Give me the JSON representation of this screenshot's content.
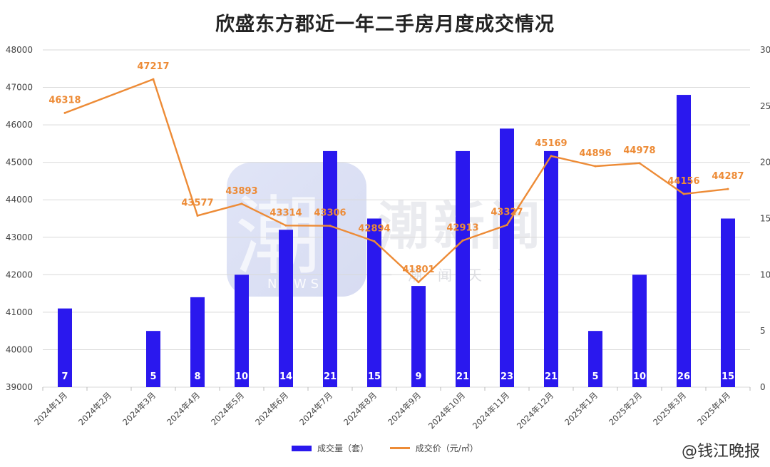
{
  "title": "欣盛东方郡近一年二手房月度成交情况",
  "watermark": {
    "glyph": "潮",
    "news": "NEWS",
    "brand": "潮新闻",
    "sub": "一潮闻天下"
  },
  "weibo": "@钱江晚报",
  "colors": {
    "bar": "#2a18ee",
    "line": "#ed8b36",
    "grid": "#d9d9d9"
  },
  "chart_data": {
    "type": "bar+line",
    "categories": [
      "2024年1月",
      "2024年2月",
      "2024年3月",
      "2024年4月",
      "2024年5月",
      "2024年6月",
      "2024年7月",
      "2024年8月",
      "2024年9月",
      "2024年10月",
      "2024年11月",
      "2024年12月",
      "2025年1月",
      "2025年2月",
      "2025年3月",
      "2025年4月"
    ],
    "series": [
      {
        "name": "成交量（套）",
        "type": "bar",
        "axis": "right",
        "values": [
          7,
          null,
          5,
          8,
          10,
          14,
          21,
          15,
          9,
          21,
          23,
          21,
          5,
          10,
          26,
          15
        ]
      },
      {
        "name": "成交价（元/㎡）",
        "type": "line",
        "axis": "left",
        "values": [
          46318,
          null,
          47217,
          43577,
          43893,
          43314,
          43306,
          42894,
          41801,
          42913,
          43327,
          45169,
          44896,
          44978,
          44156,
          44287
        ]
      }
    ],
    "y_left": {
      "min": 39000,
      "max": 48000,
      "ticks": [
        "39000",
        "40000",
        "41000",
        "42000",
        "43000",
        "44000",
        "45000",
        "46000",
        "47000",
        "48000"
      ]
    },
    "y_right": {
      "min": 0,
      "max": 30,
      "ticks": [
        "0",
        "5",
        "10",
        "15",
        "20",
        "25",
        "30"
      ]
    },
    "legend_position": "bottom",
    "grid": true
  }
}
